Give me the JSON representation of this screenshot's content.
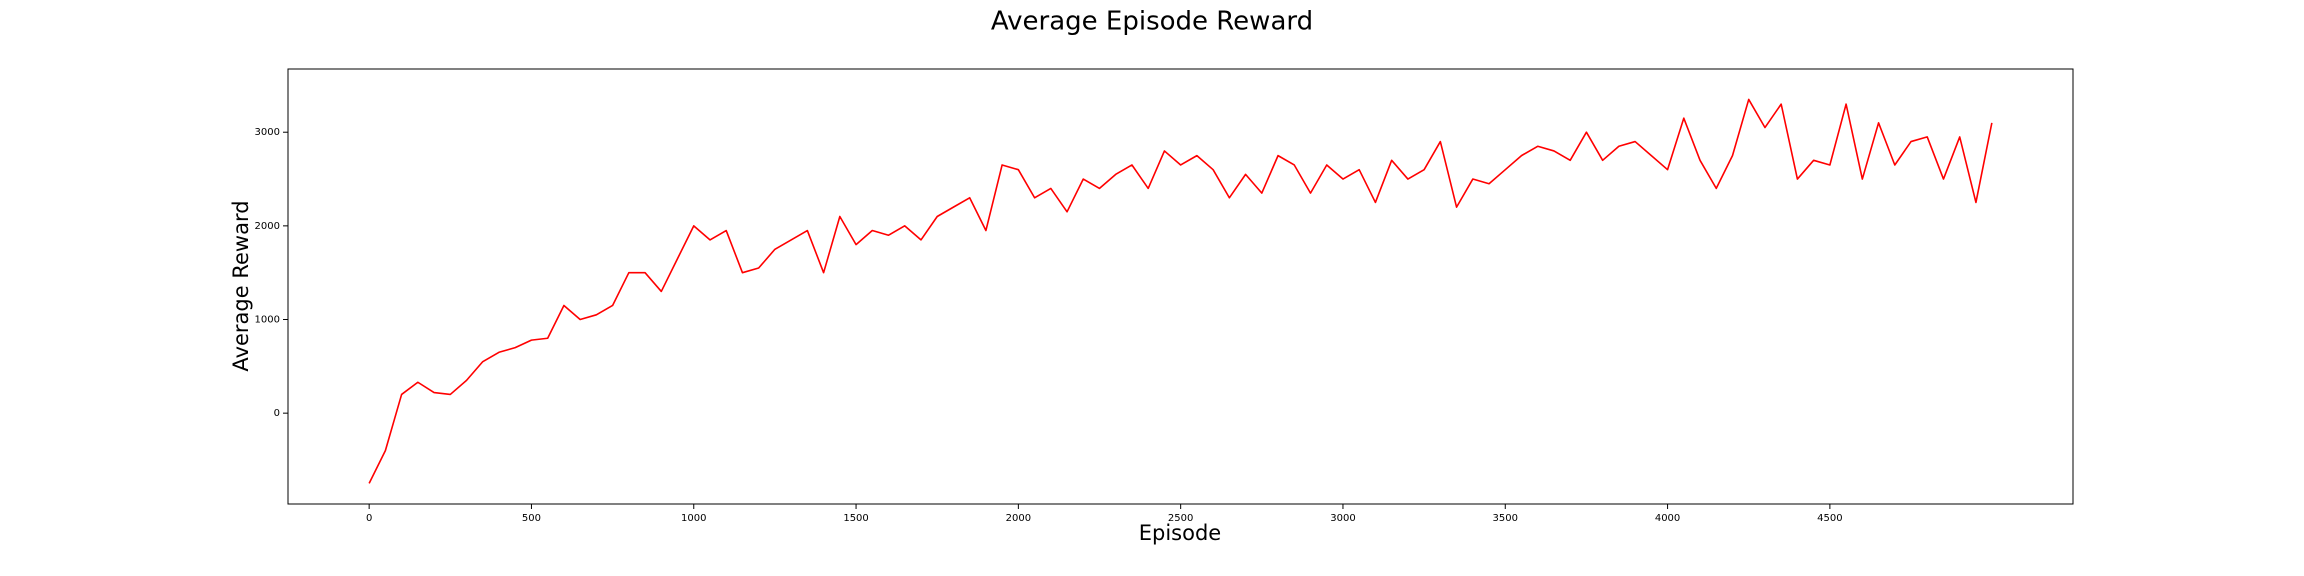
{
  "chart_data": {
    "type": "line",
    "title": "Average Episode Reward",
    "xlabel": "Episode",
    "ylabel": "Average Reward",
    "x": [
      0,
      50,
      100,
      150,
      200,
      250,
      300,
      350,
      400,
      450,
      500,
      550,
      600,
      650,
      700,
      750,
      800,
      850,
      900,
      950,
      1000,
      1050,
      1100,
      1150,
      1200,
      1250,
      1300,
      1350,
      1400,
      1450,
      1500,
      1550,
      1600,
      1650,
      1700,
      1750,
      1800,
      1850,
      1900,
      1950,
      2000,
      2050,
      2100,
      2150,
      2200,
      2250,
      2300,
      2350,
      2400,
      2450,
      2500,
      2550,
      2600,
      2650,
      2700,
      2750,
      2800,
      2850,
      2900,
      2950,
      3000,
      3050,
      3100,
      3150,
      3200,
      3250,
      3300,
      3350,
      3400,
      3450,
      3500,
      3550,
      3600,
      3650,
      3700,
      3750,
      3800,
      3850,
      3900,
      3950,
      4000,
      4050,
      4100,
      4150,
      4200,
      4250,
      4300,
      4350,
      4400,
      4450,
      4500,
      4550,
      4600,
      4650,
      4700,
      4750,
      4800,
      4850,
      4900,
      4950,
      4999
    ],
    "series": [
      {
        "color": "#ff0000",
        "values": [
          -750,
          -400,
          200,
          330,
          220,
          200,
          350,
          550,
          650,
          700,
          780,
          800,
          1150,
          1000,
          1050,
          1150,
          1500,
          1500,
          1300,
          1650,
          2000,
          1850,
          1950,
          1500,
          1550,
          1750,
          1850,
          1950,
          1500,
          2100,
          1800,
          1950,
          1900,
          2000,
          1850,
          2100,
          2200,
          2300,
          1950,
          2650,
          2600,
          2300,
          2400,
          2150,
          2500,
          2400,
          2550,
          2650,
          2400,
          2800,
          2650,
          2750,
          2600,
          2300,
          2550,
          2350,
          2750,
          2650,
          2350,
          2650,
          2500,
          2600,
          2250,
          2700,
          2500,
          2600,
          2900,
          2200,
          2500,
          2450,
          2600,
          2750,
          2850,
          2800,
          2700,
          3000,
          2700,
          2850,
          2900,
          2750,
          2600,
          3150,
          2700,
          2400,
          2750,
          3350,
          3050,
          3300,
          2500,
          2700,
          2650,
          3300,
          2500,
          3100,
          2650,
          2900,
          2950,
          2500,
          2950,
          2250,
          3100
        ]
      }
    ],
    "xlim": [
      -250,
      5249
    ],
    "ylim": [
      -970,
      3675
    ],
    "xticks": [
      0,
      500,
      1000,
      1500,
      2000,
      2500,
      3000,
      3500,
      4000,
      4500
    ],
    "yticks": [
      0,
      1000,
      2000,
      3000
    ],
    "grid": false
  }
}
